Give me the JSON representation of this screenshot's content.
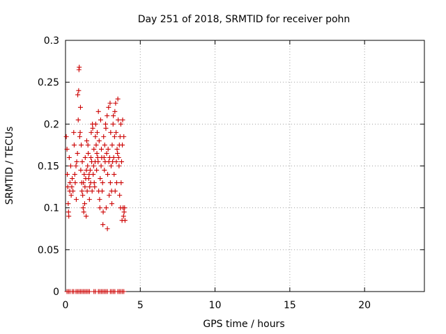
{
  "chart_data": {
    "type": "scatter",
    "title": "Day 251 of 2018, SRMTID for receiver pohn",
    "xlabel": "GPS time / hours",
    "ylabel": "SRMTID / TECUs",
    "xlim": [
      0,
      24
    ],
    "ylim": [
      0,
      0.3
    ],
    "xticks": [
      0,
      5,
      10,
      15,
      20
    ],
    "xtick_labels": [
      "0",
      "5",
      "10",
      "15",
      "20"
    ],
    "yticks": [
      0,
      0.05,
      0.1,
      0.15,
      0.2,
      0.25,
      0.3
    ],
    "ytick_labels": [
      "0",
      "0.05",
      "0.1",
      "0.15",
      "0.2",
      "0.25",
      "0.3"
    ],
    "grid": true,
    "marker": "+",
    "series": [
      {
        "name": "SRMTID",
        "color": "#cc0000",
        "points": [
          [
            0.05,
            0.185
          ],
          [
            0.1,
            0.17
          ],
          [
            0.12,
            0.14
          ],
          [
            0.15,
            0.125
          ],
          [
            0.18,
            0.105
          ],
          [
            0.2,
            0.095
          ],
          [
            0.22,
            0.09
          ],
          [
            0.25,
            0.16
          ],
          [
            0.28,
            0.12
          ],
          [
            0.3,
            0.13
          ],
          [
            0.35,
            0.15
          ],
          [
            0.38,
            0.115
          ],
          [
            0.42,
            0.125
          ],
          [
            0.45,
            0.135
          ],
          [
            0.5,
            0.12
          ],
          [
            0.55,
            0.19
          ],
          [
            0.58,
            0.175
          ],
          [
            0.62,
            0.14
          ],
          [
            0.65,
            0.13
          ],
          [
            0.7,
            0.15
          ],
          [
            0.72,
            0.11
          ],
          [
            0.75,
            0.155
          ],
          [
            0.8,
            0.165
          ],
          [
            0.82,
            0.235
          ],
          [
            0.85,
            0.205
          ],
          [
            0.88,
            0.24
          ],
          [
            0.9,
            0.265
          ],
          [
            0.92,
            0.268
          ],
          [
            0.95,
            0.185
          ],
          [
            0.98,
            0.19
          ],
          [
            1.0,
            0.22
          ],
          [
            1.02,
            0.145
          ],
          [
            1.05,
            0.175
          ],
          [
            1.08,
            0.13
          ],
          [
            1.1,
            0.12
          ],
          [
            1.12,
            0.155
          ],
          [
            1.15,
            0.115
          ],
          [
            1.18,
            0.1
          ],
          [
            1.2,
            0.13
          ],
          [
            1.22,
            0.095
          ],
          [
            1.25,
            0.14
          ],
          [
            1.28,
            0.105
          ],
          [
            1.3,
            0.125
          ],
          [
            1.32,
            0.16
          ],
          [
            1.35,
            0.135
          ],
          [
            1.38,
            0.09
          ],
          [
            1.4,
            0.145
          ],
          [
            1.42,
            0.18
          ],
          [
            1.45,
            0.12
          ],
          [
            1.48,
            0.15
          ],
          [
            1.5,
            0.175
          ],
          [
            1.52,
            0.165
          ],
          [
            1.55,
            0.135
          ],
          [
            1.58,
            0.14
          ],
          [
            1.6,
            0.11
          ],
          [
            1.62,
            0.125
          ],
          [
            1.65,
            0.145
          ],
          [
            1.68,
            0.13
          ],
          [
            1.7,
            0.16
          ],
          [
            1.72,
            0.19
          ],
          [
            1.75,
            0.155
          ],
          [
            1.78,
            0.12
          ],
          [
            1.8,
            0.2
          ],
          [
            1.82,
            0.195
          ],
          [
            1.85,
            0.14
          ],
          [
            1.88,
            0.15
          ],
          [
            1.9,
            0.17
          ],
          [
            1.92,
            0.13
          ],
          [
            1.95,
            0.125
          ],
          [
            1.98,
            0.155
          ],
          [
            2.0,
            0.185
          ],
          [
            2.02,
            0.2
          ],
          [
            2.05,
            0.175
          ],
          [
            2.08,
            0.145
          ],
          [
            2.1,
            0.165
          ],
          [
            2.12,
            0.19
          ],
          [
            2.15,
            0.16
          ],
          [
            2.18,
            0.155
          ],
          [
            2.2,
            0.215
          ],
          [
            2.22,
            0.12
          ],
          [
            2.25,
            0.18
          ],
          [
            2.28,
            0.11
          ],
          [
            2.3,
            0.1
          ],
          [
            2.32,
            0.135
          ],
          [
            2.35,
            0.205
          ],
          [
            2.38,
            0.15
          ],
          [
            2.4,
            0.17
          ],
          [
            2.42,
            0.16
          ],
          [
            2.45,
            0.12
          ],
          [
            2.48,
            0.13
          ],
          [
            2.5,
            0.08
          ],
          [
            2.52,
            0.095
          ],
          [
            2.55,
            0.185
          ],
          [
            2.58,
            0.16
          ],
          [
            2.6,
            0.145
          ],
          [
            2.62,
            0.175
          ],
          [
            2.65,
            0.155
          ],
          [
            2.68,
            0.2
          ],
          [
            2.7,
            0.195
          ],
          [
            2.72,
            0.1
          ],
          [
            2.75,
            0.165
          ],
          [
            2.78,
            0.21
          ],
          [
            2.8,
            0.075
          ],
          [
            2.82,
            0.14
          ],
          [
            2.85,
            0.17
          ],
          [
            2.88,
            0.22
          ],
          [
            2.9,
            0.155
          ],
          [
            2.92,
            0.115
          ],
          [
            2.95,
            0.16
          ],
          [
            2.98,
            0.225
          ],
          [
            3.0,
            0.13
          ],
          [
            3.02,
            0.19
          ],
          [
            3.05,
            0.15
          ],
          [
            3.08,
            0.12
          ],
          [
            3.1,
            0.105
          ],
          [
            3.12,
            0.175
          ],
          [
            3.15,
            0.155
          ],
          [
            3.18,
            0.2
          ],
          [
            3.2,
            0.21
          ],
          [
            3.22,
            0.16
          ],
          [
            3.25,
            0.14
          ],
          [
            3.28,
            0.185
          ],
          [
            3.3,
            0.215
          ],
          [
            3.32,
            0.12
          ],
          [
            3.35,
            0.225
          ],
          [
            3.38,
            0.19
          ],
          [
            3.4,
            0.155
          ],
          [
            3.42,
            0.13
          ],
          [
            3.45,
            0.17
          ],
          [
            3.48,
            0.165
          ],
          [
            3.5,
            0.23
          ],
          [
            3.52,
            0.205
          ],
          [
            3.55,
            0.16
          ],
          [
            3.58,
            0.15
          ],
          [
            3.6,
            0.175
          ],
          [
            3.62,
            0.115
          ],
          [
            3.65,
            0.185
          ],
          [
            3.68,
            0.1
          ],
          [
            3.7,
            0.2
          ],
          [
            3.72,
            0.13
          ],
          [
            3.75,
            0.155
          ],
          [
            3.78,
            0.085
          ],
          [
            3.8,
            0.175
          ],
          [
            3.82,
            0.205
          ],
          [
            3.85,
            0.1
          ],
          [
            3.88,
            0.09
          ],
          [
            3.9,
            0.185
          ],
          [
            3.92,
            0.095
          ],
          [
            3.95,
            0.1
          ],
          [
            3.98,
            0.085
          ],
          [
            0.1,
            0
          ],
          [
            0.2,
            0
          ],
          [
            0.3,
            0
          ],
          [
            0.45,
            0
          ],
          [
            0.55,
            0
          ],
          [
            0.7,
            0
          ],
          [
            0.8,
            0
          ],
          [
            0.9,
            0
          ],
          [
            1.0,
            0
          ],
          [
            1.1,
            0
          ],
          [
            1.2,
            0
          ],
          [
            1.3,
            0
          ],
          [
            1.4,
            0
          ],
          [
            1.5,
            0
          ],
          [
            1.6,
            0
          ],
          [
            1.9,
            0
          ],
          [
            2.0,
            0
          ],
          [
            2.2,
            0
          ],
          [
            2.3,
            0
          ],
          [
            2.4,
            0
          ],
          [
            2.5,
            0
          ],
          [
            2.6,
            0
          ],
          [
            2.7,
            0
          ],
          [
            2.8,
            0
          ],
          [
            3.0,
            0
          ],
          [
            3.1,
            0
          ],
          [
            3.2,
            0
          ],
          [
            3.3,
            0
          ],
          [
            3.5,
            0
          ],
          [
            3.6,
            0
          ],
          [
            3.7,
            0
          ],
          [
            3.8,
            0
          ],
          [
            3.9,
            0
          ]
        ]
      }
    ]
  }
}
